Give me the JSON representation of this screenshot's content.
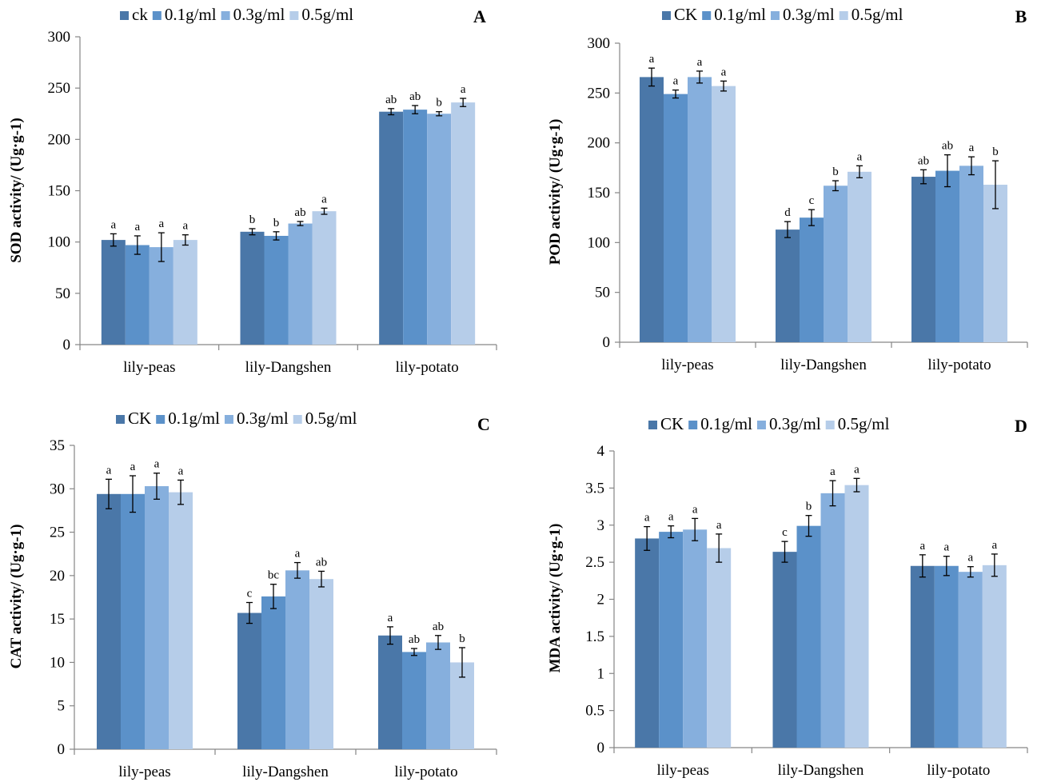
{
  "chart_data": [
    {
      "type": "bar",
      "panel_label": "A",
      "ylabel": "SOD activity/ (Ug·g-1)",
      "ylim": [
        0,
        300
      ],
      "yticks": [
        0,
        50,
        100,
        150,
        200,
        250,
        300
      ],
      "categories": [
        "lily-peas",
        "lily-Dangshen",
        "lily-potato"
      ],
      "legend_position": "top",
      "series": [
        {
          "name": "ck",
          "color": "#4a77a8",
          "values": [
            102,
            110,
            227
          ],
          "errors": [
            6,
            3,
            3
          ],
          "labels": [
            "a",
            "b",
            "ab"
          ]
        },
        {
          "name": "0.1g/ml",
          "color": "#5b91c9",
          "values": [
            97,
            106,
            229
          ],
          "errors": [
            9,
            4,
            4
          ],
          "labels": [
            "a",
            "b",
            "ab"
          ]
        },
        {
          "name": "0.3g/ml",
          "color": "#86afdd",
          "values": [
            95,
            118,
            225
          ],
          "errors": [
            14,
            2,
            2
          ],
          "labels": [
            "a",
            "ab",
            "b"
          ]
        },
        {
          "name": "0.5g/ml",
          "color": "#b6cde9",
          "values": [
            102,
            130,
            236
          ],
          "errors": [
            5,
            3,
            4
          ],
          "labels": [
            "a",
            "a",
            "a"
          ]
        }
      ]
    },
    {
      "type": "bar",
      "panel_label": "B",
      "ylabel": "POD activity/ (Ug·g-1)",
      "ylim": [
        0,
        300
      ],
      "yticks": [
        0,
        50,
        100,
        150,
        200,
        250,
        300
      ],
      "categories": [
        "lily-peas",
        "lily-Dangshen",
        "lily-potato"
      ],
      "legend_position": "top",
      "series": [
        {
          "name": "CK",
          "color": "#4a77a8",
          "values": [
            266,
            113,
            166
          ],
          "errors": [
            9,
            8,
            7
          ],
          "labels": [
            "a",
            "d",
            "ab"
          ]
        },
        {
          "name": "0.1g/ml",
          "color": "#5b91c9",
          "values": [
            249,
            125,
            172
          ],
          "errors": [
            4,
            8,
            16
          ],
          "labels": [
            "a",
            "c",
            "ab"
          ]
        },
        {
          "name": "0.3g/ml",
          "color": "#86afdd",
          "values": [
            266,
            157,
            177
          ],
          "errors": [
            6,
            5,
            9
          ],
          "labels": [
            "a",
            "b",
            "a"
          ]
        },
        {
          "name": "0.5g/ml",
          "color": "#b6cde9",
          "values": [
            257,
            171,
            158
          ],
          "errors": [
            5,
            6,
            24
          ],
          "labels": [
            "a",
            "a",
            "b"
          ]
        }
      ]
    },
    {
      "type": "bar",
      "panel_label": "C",
      "ylabel": "CAT activity/ (Ug·g-1)",
      "ylim": [
        0,
        35
      ],
      "yticks": [
        0,
        5,
        10,
        15,
        20,
        25,
        30,
        35
      ],
      "categories": [
        "lily-peas",
        "lily-Dangshen",
        "lily-potato"
      ],
      "legend_position": "top",
      "series": [
        {
          "name": "CK",
          "color": "#4a77a8",
          "values": [
            29.4,
            15.7,
            13.1
          ],
          "errors": [
            1.7,
            1.2,
            1.0
          ],
          "labels": [
            "a",
            "c",
            "a"
          ]
        },
        {
          "name": "0.1g/ml",
          "color": "#5b91c9",
          "values": [
            29.4,
            17.6,
            11.2
          ],
          "errors": [
            2.1,
            1.4,
            0.4
          ],
          "labels": [
            "a",
            "bc",
            "ab"
          ]
        },
        {
          "name": "0.3g/ml",
          "color": "#86afdd",
          "values": [
            30.3,
            20.6,
            12.3
          ],
          "errors": [
            1.5,
            0.9,
            0.8
          ],
          "labels": [
            "a",
            "a",
            "ab"
          ]
        },
        {
          "name": "0.5g/ml",
          "color": "#b6cde9",
          "values": [
            29.6,
            19.6,
            10.0
          ],
          "errors": [
            1.4,
            0.9,
            1.7
          ],
          "labels": [
            "a",
            "ab",
            "b"
          ]
        }
      ]
    },
    {
      "type": "bar",
      "panel_label": "D",
      "ylabel": "MDA activity/ (Ug·g-1)",
      "ylim": [
        0,
        4
      ],
      "yticks": [
        "0",
        "0.5",
        "1",
        "1.5",
        "2",
        "2.5",
        "3",
        "3.5",
        "4"
      ],
      "categories": [
        "lily-peas",
        "lily-Dangshen",
        "lily-potato"
      ],
      "legend_position": "top",
      "series": [
        {
          "name": "CK",
          "color": "#4a77a8",
          "values": [
            2.82,
            2.64,
            2.45
          ],
          "errors": [
            0.16,
            0.14,
            0.15
          ],
          "labels": [
            "a",
            "c",
            "a"
          ]
        },
        {
          "name": "0.1g/ml",
          "color": "#5b91c9",
          "values": [
            2.91,
            2.99,
            2.45
          ],
          "errors": [
            0.08,
            0.14,
            0.13
          ],
          "labels": [
            "a",
            "b",
            "a"
          ]
        },
        {
          "name": "0.3g/ml",
          "color": "#86afdd",
          "values": [
            2.94,
            3.43,
            2.37
          ],
          "errors": [
            0.15,
            0.17,
            0.07
          ],
          "labels": [
            "a",
            "a",
            "a"
          ]
        },
        {
          "name": "0.5g/ml",
          "color": "#b6cde9",
          "values": [
            2.69,
            3.54,
            2.46
          ],
          "errors": [
            0.19,
            0.09,
            0.15
          ],
          "labels": [
            "a",
            "a",
            "a"
          ]
        }
      ]
    }
  ]
}
